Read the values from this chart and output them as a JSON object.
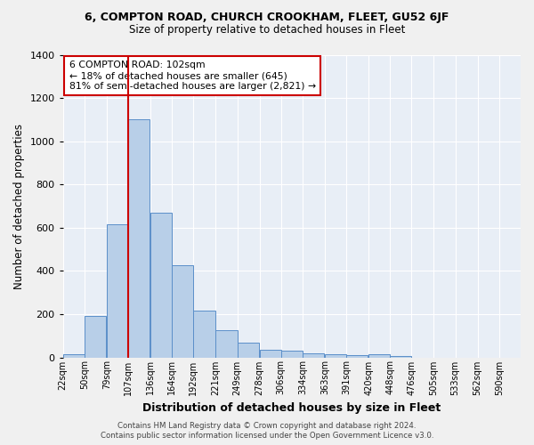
{
  "title": "6, COMPTON ROAD, CHURCH CROOKHAM, FLEET, GU52 6JF",
  "subtitle": "Size of property relative to detached houses in Fleet",
  "xlabel": "Distribution of detached houses by size in Fleet",
  "ylabel": "Number of detached properties",
  "footer1": "Contains HM Land Registry data © Crown copyright and database right 2024.",
  "footer2": "Contains public sector information licensed under the Open Government Licence v3.0.",
  "bar_labels": [
    "22sqm",
    "50sqm",
    "79sqm",
    "107sqm",
    "136sqm",
    "164sqm",
    "192sqm",
    "221sqm",
    "249sqm",
    "278sqm",
    "306sqm",
    "334sqm",
    "363sqm",
    "391sqm",
    "420sqm",
    "448sqm",
    "476sqm",
    "505sqm",
    "533sqm",
    "562sqm",
    "590sqm"
  ],
  "bar_values": [
    15,
    190,
    615,
    1100,
    670,
    425,
    215,
    125,
    70,
    33,
    30,
    18,
    13,
    9,
    14,
    5,
    0,
    0,
    0,
    0,
    0
  ],
  "bar_color": "#b8cfe8",
  "bar_edge_color": "#5b8fc9",
  "bg_color": "#e8eef6",
  "grid_color": "#ffffff",
  "property_line_color": "#cc0000",
  "annotation_text": "6 COMPTON ROAD: 102sqm\n← 18% of detached houses are smaller (645)\n81% of semi-detached houses are larger (2,821) →",
  "annotation_box_color": "#ffffff",
  "annotation_box_edge": "#cc0000",
  "ylim": [
    0,
    1400
  ],
  "yticks": [
    0,
    200,
    400,
    600,
    800,
    1000,
    1200,
    1400
  ],
  "bin_width": 28,
  "property_sqm": 102
}
